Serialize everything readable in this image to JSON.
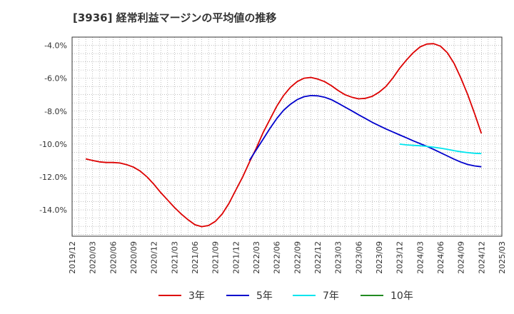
{
  "chart_data": {
    "type": "line",
    "title": "[3936]  経常利益マージンの平均値の推移",
    "xlabel": "",
    "ylabel": "",
    "ylim": [
      -15.6,
      -3.5
    ],
    "y_ticks": [
      -4,
      -6,
      -8,
      -10,
      -12,
      -14
    ],
    "y_tick_labels": [
      "-4.0%",
      "-6.0%",
      "-8.0%",
      "-10.0%",
      "-12.0%",
      "-14.0%"
    ],
    "x_range": [
      "2019-12",
      "2025-03"
    ],
    "x_tick_labels": [
      "2019/12",
      "2020/03",
      "2020/06",
      "2020/09",
      "2020/12",
      "2021/03",
      "2021/06",
      "2021/09",
      "2021/12",
      "2022/03",
      "2022/06",
      "2022/09",
      "2022/12",
      "2023/03",
      "2023/06",
      "2023/09",
      "2023/12",
      "2024/03",
      "2024/06",
      "2024/09",
      "2024/12",
      "2025/03"
    ],
    "grid": true,
    "legend_position": "bottom",
    "series": [
      {
        "name": "3年",
        "color": "#dd0000",
        "points": [
          [
            "2020-02",
            -10.9
          ],
          [
            "2020-03",
            -11.0
          ],
          [
            "2020-04",
            -11.08
          ],
          [
            "2020-05",
            -11.12
          ],
          [
            "2020-06",
            -11.12
          ],
          [
            "2020-07",
            -11.15
          ],
          [
            "2020-08",
            -11.25
          ],
          [
            "2020-09",
            -11.4
          ],
          [
            "2020-10",
            -11.65
          ],
          [
            "2020-11",
            -12.0
          ],
          [
            "2020-12",
            -12.45
          ],
          [
            "2021-01",
            -12.95
          ],
          [
            "2021-02",
            -13.4
          ],
          [
            "2021-03",
            -13.85
          ],
          [
            "2021-04",
            -14.25
          ],
          [
            "2021-05",
            -14.6
          ],
          [
            "2021-06",
            -14.9
          ],
          [
            "2021-07",
            -15.02
          ],
          [
            "2021-08",
            -14.95
          ],
          [
            "2021-09",
            -14.7
          ],
          [
            "2021-10",
            -14.25
          ],
          [
            "2021-11",
            -13.6
          ],
          [
            "2021-12",
            -12.8
          ],
          [
            "2022-01",
            -12.0
          ],
          [
            "2022-02",
            -11.1
          ],
          [
            "2022-03",
            -10.25
          ],
          [
            "2022-04",
            -9.3
          ],
          [
            "2022-05",
            -8.5
          ],
          [
            "2022-06",
            -7.7
          ],
          [
            "2022-07",
            -7.05
          ],
          [
            "2022-08",
            -6.55
          ],
          [
            "2022-09",
            -6.2
          ],
          [
            "2022-10",
            -6.0
          ],
          [
            "2022-11",
            -5.95
          ],
          [
            "2022-12",
            -6.05
          ],
          [
            "2023-01",
            -6.2
          ],
          [
            "2023-02",
            -6.45
          ],
          [
            "2023-03",
            -6.75
          ],
          [
            "2023-04",
            -7.0
          ],
          [
            "2023-05",
            -7.15
          ],
          [
            "2023-06",
            -7.25
          ],
          [
            "2023-07",
            -7.22
          ],
          [
            "2023-08",
            -7.1
          ],
          [
            "2023-09",
            -6.85
          ],
          [
            "2023-10",
            -6.5
          ],
          [
            "2023-11",
            -6.0
          ],
          [
            "2023-12",
            -5.4
          ],
          [
            "2024-01",
            -4.9
          ],
          [
            "2024-02",
            -4.45
          ],
          [
            "2024-03",
            -4.1
          ],
          [
            "2024-04",
            -3.92
          ],
          [
            "2024-05",
            -3.9
          ],
          [
            "2024-06",
            -4.05
          ],
          [
            "2024-07",
            -4.45
          ],
          [
            "2024-08",
            -5.1
          ],
          [
            "2024-09",
            -6.0
          ],
          [
            "2024-10",
            -7.0
          ],
          [
            "2024-11",
            -8.15
          ],
          [
            "2024-12",
            -9.35
          ]
        ]
      },
      {
        "name": "5年",
        "color": "#0000cc",
        "points": [
          [
            "2022-02",
            -11.0
          ],
          [
            "2022-03",
            -10.35
          ],
          [
            "2022-04",
            -9.7
          ],
          [
            "2022-05",
            -9.05
          ],
          [
            "2022-06",
            -8.45
          ],
          [
            "2022-07",
            -7.95
          ],
          [
            "2022-08",
            -7.58
          ],
          [
            "2022-09",
            -7.3
          ],
          [
            "2022-10",
            -7.12
          ],
          [
            "2022-11",
            -7.05
          ],
          [
            "2022-12",
            -7.07
          ],
          [
            "2023-01",
            -7.15
          ],
          [
            "2023-02",
            -7.3
          ],
          [
            "2023-03",
            -7.52
          ],
          [
            "2023-04",
            -7.75
          ],
          [
            "2023-05",
            -7.98
          ],
          [
            "2023-06",
            -8.22
          ],
          [
            "2023-07",
            -8.45
          ],
          [
            "2023-08",
            -8.68
          ],
          [
            "2023-09",
            -8.88
          ],
          [
            "2023-10",
            -9.08
          ],
          [
            "2023-11",
            -9.26
          ],
          [
            "2023-12",
            -9.44
          ],
          [
            "2024-01",
            -9.62
          ],
          [
            "2024-02",
            -9.8
          ],
          [
            "2024-03",
            -9.97
          ],
          [
            "2024-04",
            -10.14
          ],
          [
            "2024-05",
            -10.32
          ],
          [
            "2024-06",
            -10.52
          ],
          [
            "2024-07",
            -10.72
          ],
          [
            "2024-08",
            -10.92
          ],
          [
            "2024-09",
            -11.1
          ],
          [
            "2024-10",
            -11.24
          ],
          [
            "2024-11",
            -11.33
          ],
          [
            "2024-12",
            -11.38
          ]
        ]
      },
      {
        "name": "7年",
        "color": "#00e5ee",
        "points": [
          [
            "2023-12",
            -10.0
          ],
          [
            "2024-01",
            -10.05
          ],
          [
            "2024-02",
            -10.08
          ],
          [
            "2024-03",
            -10.1
          ],
          [
            "2024-04",
            -10.14
          ],
          [
            "2024-05",
            -10.19
          ],
          [
            "2024-06",
            -10.25
          ],
          [
            "2024-07",
            -10.32
          ],
          [
            "2024-08",
            -10.4
          ],
          [
            "2024-09",
            -10.47
          ],
          [
            "2024-10",
            -10.52
          ],
          [
            "2024-11",
            -10.56
          ],
          [
            "2024-12",
            -10.58
          ]
        ]
      },
      {
        "name": "10年",
        "color": "#228b22",
        "points": []
      }
    ]
  }
}
